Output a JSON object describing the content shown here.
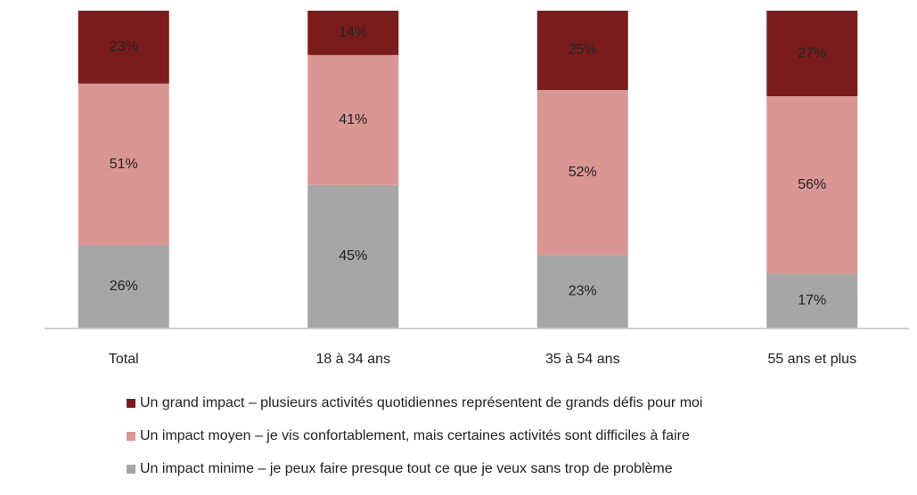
{
  "chart_data": {
    "type": "stacked_bar",
    "categories": [
      "Total",
      "18 à 34 ans",
      "35 à 54 ans",
      "55 ans et plus"
    ],
    "series": [
      {
        "name": "Un impact minime – je peux faire presque tout ce que je veux sans trop de problème",
        "color": "#a6a6a6",
        "values": [
          26,
          45,
          23,
          17
        ],
        "value_labels": [
          "26%",
          "45%",
          "23%",
          "17%"
        ]
      },
      {
        "name": "Un impact moyen – je vis confortablement, mais certaines activités sont difficiles à faire",
        "color": "#d99694",
        "values": [
          51,
          41,
          52,
          56
        ],
        "value_labels": [
          "51%",
          "41%",
          "52%",
          "56%"
        ]
      },
      {
        "name": "Un grand impact – plusieurs activités quotidiennes représentent de grands défis pour moi",
        "color": "#7b1c1c",
        "values": [
          23,
          14,
          25,
          27
        ],
        "value_labels": [
          "23%",
          "14%",
          "25%",
          "27%"
        ]
      }
    ]
  }
}
